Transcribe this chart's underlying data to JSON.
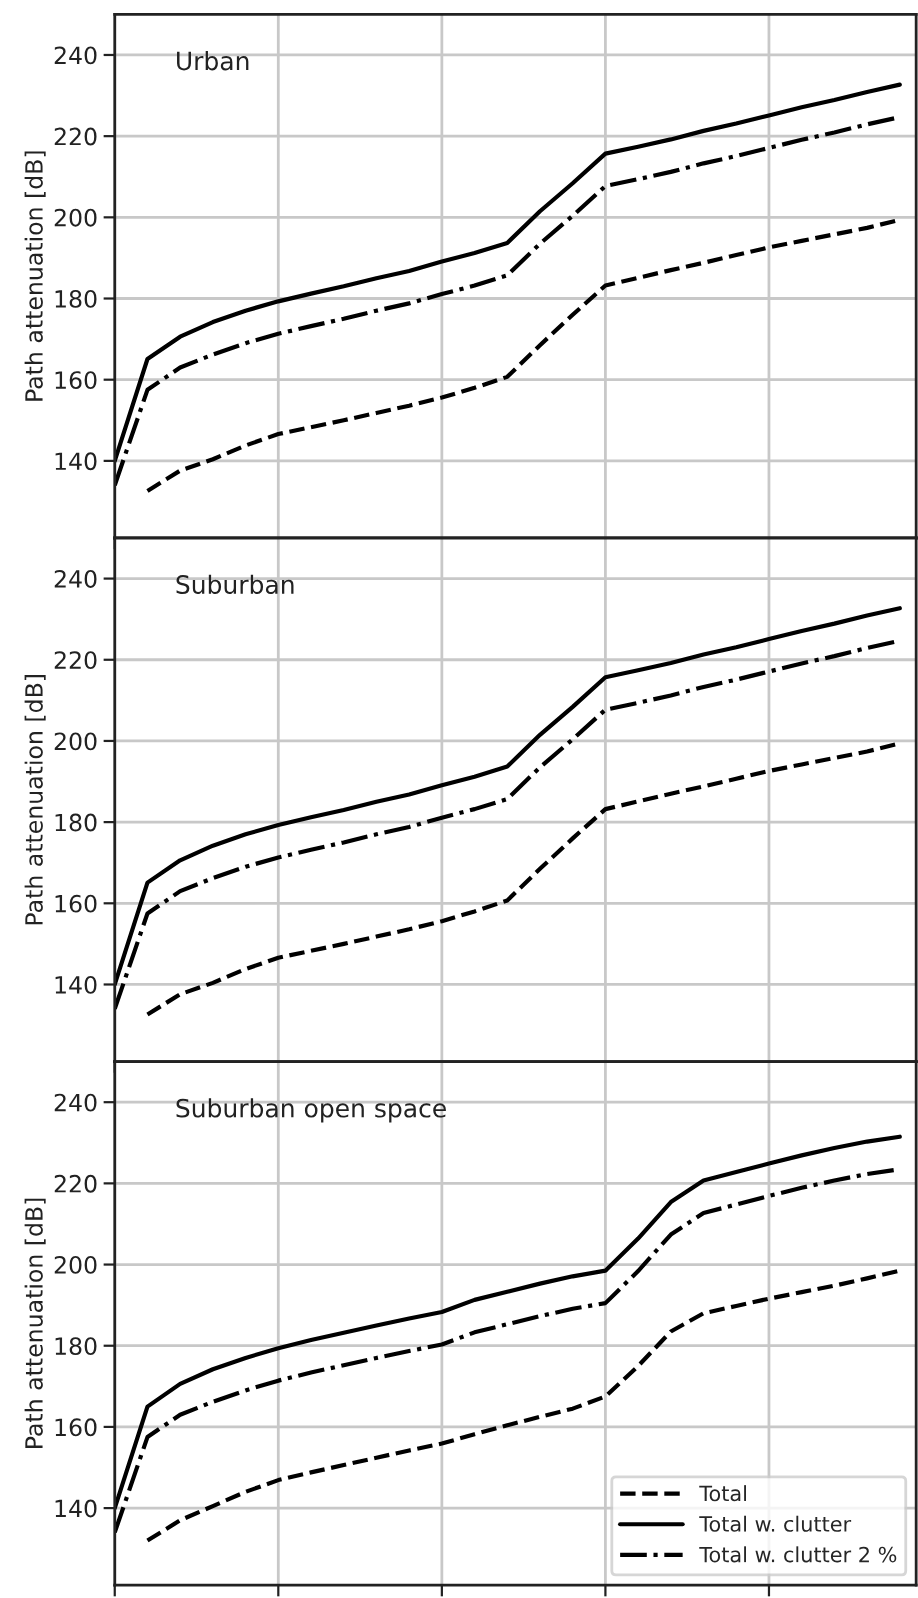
{
  "chart_data": [
    {
      "type": "line",
      "title": "Urban",
      "ylabel": "Path attenuation [dB]",
      "categories": [
        null,
        null,
        null,
        null,
        null,
        null,
        null,
        null,
        null,
        null,
        null,
        null,
        null,
        null,
        null,
        null,
        null,
        null,
        null,
        null,
        null,
        null,
        null,
        null,
        null
      ],
      "ylim": [
        121,
        250
      ],
      "yticks": [
        140,
        160,
        180,
        200,
        220,
        240
      ],
      "grid": true,
      "legend": false,
      "tick_labels": "y",
      "series": [
        {
          "color": "#000000",
          "line_style": "dashed",
          "values": [
            null,
            132.6,
            137.6,
            140.4,
            143.8,
            146.6,
            148.3,
            150,
            151.8,
            153.6,
            155.6,
            158,
            160.7,
            168.5,
            176,
            183.2,
            185.1,
            187,
            188.8,
            190.7,
            192.6,
            194.2,
            195.8,
            197.4,
            199.4
          ]
        },
        {
          "color": "#000000",
          "line_style": "solid",
          "values": [
            140,
            165.1,
            170.6,
            174.2,
            177,
            179.3,
            181.2,
            183,
            185,
            186.8,
            189.1,
            191.2,
            193.7,
            201.5,
            208.4,
            215.7,
            217.4,
            219.2,
            221.3,
            223.1,
            225.1,
            227.1,
            228.9,
            230.9,
            232.7
          ]
        },
        {
          "color": "#000000",
          "line_style": "dashdot",
          "values": [
            134,
            157.5,
            163,
            166.2,
            169,
            171.3,
            173.2,
            175,
            177,
            178.8,
            181.1,
            183.2,
            185.7,
            193.5,
            200.4,
            207.7,
            209.4,
            211.2,
            213.3,
            215.1,
            217.1,
            219.1,
            220.9,
            222.9,
            224.7
          ]
        }
      ]
    },
    {
      "type": "line",
      "title": "Suburban",
      "ylabel": "Path attenuation [dB]",
      "categories": [
        null,
        null,
        null,
        null,
        null,
        null,
        null,
        null,
        null,
        null,
        null,
        null,
        null,
        null,
        null,
        null,
        null,
        null,
        null,
        null,
        null,
        null,
        null,
        null,
        null
      ],
      "ylim": [
        121,
        250
      ],
      "yticks": [
        140,
        160,
        180,
        200,
        220,
        240
      ],
      "grid": true,
      "legend": false,
      "tick_labels": "y",
      "series": [
        {
          "color": "#000000",
          "line_style": "dashed",
          "values": [
            null,
            132.6,
            137.6,
            140.4,
            143.8,
            146.6,
            148.3,
            150,
            151.8,
            153.6,
            155.6,
            158,
            160.7,
            168.5,
            176,
            183.2,
            185.1,
            187,
            188.8,
            190.7,
            192.6,
            194.2,
            195.8,
            197.4,
            199.4
          ]
        },
        {
          "color": "#000000",
          "line_style": "solid",
          "values": [
            140,
            165.1,
            170.6,
            174.2,
            177,
            179.3,
            181.2,
            183,
            185,
            186.8,
            189.1,
            191.2,
            193.7,
            201.5,
            208.4,
            215.7,
            217.4,
            219.2,
            221.3,
            223.1,
            225.1,
            227.1,
            228.9,
            230.9,
            232.7
          ]
        },
        {
          "color": "#000000",
          "line_style": "dashdot",
          "values": [
            134,
            157.5,
            163,
            166.2,
            169,
            171.3,
            173.2,
            175,
            177,
            178.8,
            181.1,
            183.2,
            185.7,
            193.5,
            200.4,
            207.7,
            209.4,
            211.2,
            213.3,
            215.1,
            217.1,
            219.1,
            220.9,
            222.9,
            224.7
          ]
        }
      ]
    },
    {
      "type": "line",
      "title": "Suburban open space",
      "ylabel": "Path attenuation [dB]",
      "categories": [
        null,
        null,
        null,
        null,
        null,
        null,
        null,
        null,
        null,
        null,
        null,
        null,
        null,
        null,
        null,
        null,
        null,
        null,
        null,
        null,
        null,
        null,
        null,
        null,
        null
      ],
      "ylim": [
        121,
        250
      ],
      "yticks": [
        140,
        160,
        180,
        200,
        220,
        240
      ],
      "grid": true,
      "legend": "bottom right",
      "tick_labels": "y",
      "series": [
        {
          "name": "Total",
          "color": "#000000",
          "line_style": "dashed",
          "values": [
            null,
            132,
            137,
            140.5,
            144,
            146.9,
            148.8,
            150.6,
            152.4,
            154.2,
            155.9,
            158.2,
            160.4,
            162.5,
            164.5,
            167.5,
            175,
            183.5,
            188,
            189.8,
            191.6,
            193.2,
            194.8,
            196.6,
            198.5
          ]
        },
        {
          "name": "Total w. clutter",
          "color": "#000000",
          "line_style": "solid",
          "values": [
            140,
            165,
            170.6,
            174.2,
            177,
            179.4,
            181.4,
            183.2,
            185,
            186.7,
            188.3,
            191.3,
            193.3,
            195.3,
            197.1,
            198.5,
            206.4,
            215.4,
            220.7,
            222.8,
            224.9,
            226.9,
            228.7,
            230.3,
            231.5
          ]
        },
        {
          "name": "Total w. clutter 2 %",
          "color": "#000000",
          "line_style": "dashdot",
          "values": [
            134,
            157.5,
            163,
            166.2,
            169,
            171.4,
            173.4,
            175.2,
            177,
            178.7,
            180.3,
            183.3,
            185.3,
            187.3,
            189.1,
            190.5,
            198.4,
            207.4,
            212.7,
            214.8,
            216.9,
            218.9,
            220.7,
            222.3,
            223.5
          ]
        }
      ]
    }
  ]
}
